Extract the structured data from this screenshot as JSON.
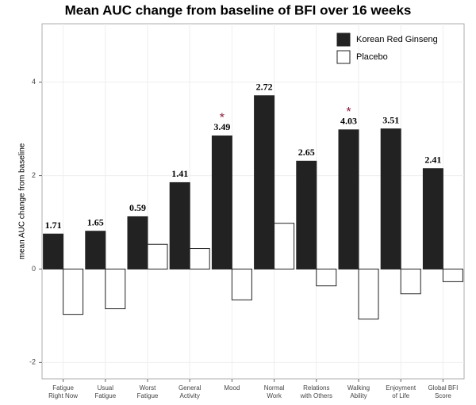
{
  "chart_data": {
    "type": "bar",
    "title": "Mean AUC change from baseline of BFI over 16 weeks",
    "y_label": "mean AUC change from baseline",
    "categories": [
      [
        "Fatigue",
        "Right Now"
      ],
      [
        "Usual",
        "Fatigue"
      ],
      [
        "Worst",
        "Fatigue"
      ],
      [
        "General",
        "Activity"
      ],
      [
        "Mood"
      ],
      [
        "Normal",
        "Work"
      ],
      [
        "Relations",
        "with Others"
      ],
      [
        "Walking",
        "Ability"
      ],
      [
        "Enjoyment",
        "of Life"
      ],
      [
        "Global BFI",
        "Score"
      ]
    ],
    "series": [
      {
        "name": "Korean Red Ginseng",
        "color": "#222222",
        "values": [
          0.75,
          0.81,
          1.12,
          1.85,
          2.85,
          3.71,
          2.31,
          2.98,
          3.0,
          2.15
        ]
      },
      {
        "name": "Placebo",
        "color": "#ffffff",
        "values": [
          -0.97,
          -0.85,
          0.53,
          0.44,
          -0.66,
          0.98,
          -0.36,
          -1.07,
          -0.53,
          -0.27
        ]
      }
    ],
    "group_labels": [
      "1.71",
      "1.65",
      "0.59",
      "1.41",
      "3.49",
      "2.72",
      "2.65",
      "4.03",
      "3.51",
      "2.41"
    ],
    "significance": [
      null,
      null,
      null,
      null,
      "*",
      null,
      null,
      "*",
      null,
      null
    ],
    "ylim": [
      -2.35,
      5.25
    ],
    "yticks": [
      -2,
      0,
      2,
      4
    ],
    "grid": true,
    "legend": "top-right"
  }
}
